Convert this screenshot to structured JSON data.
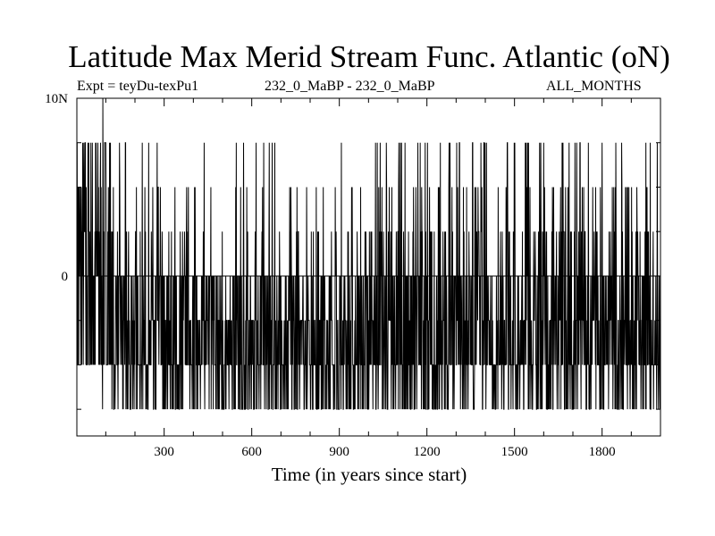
{
  "chart_data": {
    "type": "line",
    "title": "Latitude Max Merid Stream Func. Atlantic (oN)",
    "subtitle_left": "Expt = teyDu-texPu1",
    "subtitle_center": "232_0_MaBP - 232_0_MaBP",
    "subtitle_right": "ALL_MONTHS",
    "xlabel": "Time (in years since start)",
    "ylabel": "",
    "xlim": [
      1,
      2000
    ],
    "ylim": [
      -9,
      10
    ],
    "xticks": [
      300,
      600,
      900,
      1200,
      1500,
      1800
    ],
    "xtick_labels": [
      "300",
      "600",
      "900",
      "1200",
      "1500",
      "1800"
    ],
    "yticks": [
      0,
      10
    ],
    "ytick_labels": [
      "0",
      "10N"
    ],
    "zero_line": 0,
    "series": [
      {
        "name": "Latitude of max Atlantic meridional stream function",
        "levels": [
          -7.5,
          -5,
          -2.5,
          0,
          2.5,
          5,
          7.5,
          10
        ],
        "peak_year": 90,
        "peak_value": 10,
        "typical_range": [
          -7.5,
          0
        ]
      }
    ]
  }
}
